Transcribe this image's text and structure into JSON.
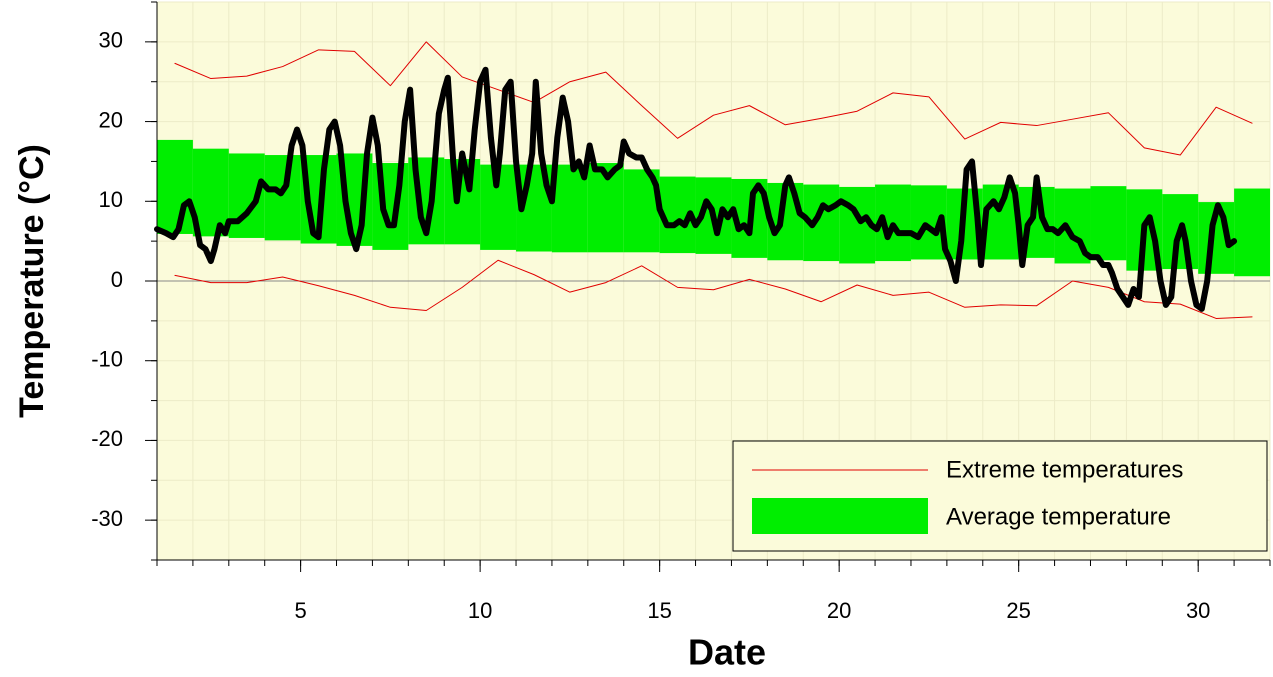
{
  "chart_data": {
    "type": "line",
    "x_label": "Date",
    "y_label": "Temperature (°C)",
    "xlim": [
      1,
      32
    ],
    "ylim": [
      -35,
      35
    ],
    "xticks": [
      5,
      10,
      15,
      20,
      25,
      30
    ],
    "yticks": [
      -30,
      -20,
      -10,
      0,
      10,
      20,
      30
    ],
    "grid": true,
    "legend": "lower right",
    "extremes": {
      "name": "Extreme temperatures",
      "color": "#e00000",
      "x": [
        1.5,
        2.5,
        3.5,
        4.5,
        5.5,
        6.5,
        7.5,
        8.5,
        9.5,
        10.5,
        11.5,
        12.5,
        13.5,
        14.5,
        15.5,
        16.5,
        17.5,
        18.5,
        19.5,
        20.5,
        21.5,
        22.5,
        23.5,
        24.5,
        25.5,
        26.5,
        27.5,
        28.5,
        29.5,
        30.5,
        31.5
      ],
      "max": [
        27.3,
        25.4,
        25.7,
        26.9,
        29,
        28.8,
        24.5,
        30,
        25.6,
        24,
        22.4,
        25,
        26.2,
        22,
        17.9,
        20.8,
        22,
        19.6,
        20.4,
        21.3,
        23.6,
        23.1,
        17.8,
        19.9,
        19.5,
        20.3,
        21.1,
        16.7,
        15.8,
        21.8,
        19.8
      ],
      "min": [
        0.7,
        -0.2,
        -0.2,
        0.5,
        -0.6,
        -1.8,
        -3.3,
        -3.7,
        -0.8,
        2.6,
        0.8,
        -1.4,
        -0.2,
        1.9,
        -0.8,
        -1.1,
        0.2,
        -1,
        -2.6,
        -0.5,
        -1.8,
        -1.4,
        -3.3,
        -3,
        -3.1,
        0,
        -0.8,
        -2.6,
        -2.9,
        -4.7,
        -4.5
      ]
    },
    "average": {
      "name": "Average temperature",
      "color": "#00ee00",
      "x": [
        1,
        2,
        3,
        4,
        5,
        6,
        7,
        8,
        9,
        10,
        11,
        12,
        13,
        14,
        15,
        16,
        17,
        18,
        19,
        20,
        21,
        22,
        23,
        24,
        25,
        26,
        27,
        28,
        29,
        30,
        31
      ],
      "low": [
        5.9,
        5.6,
        5.4,
        5.1,
        4.7,
        4.4,
        3.9,
        4.6,
        4.6,
        3.9,
        3.7,
        3.6,
        3.6,
        3.6,
        3.5,
        3.4,
        2.9,
        2.6,
        2.5,
        2.2,
        2.5,
        2.7,
        2.7,
        2.7,
        2.9,
        2.2,
        2.6,
        1.3,
        1.5,
        0.9,
        0.6
      ],
      "high": [
        17.7,
        16.6,
        16,
        15.8,
        15.8,
        16,
        14.8,
        15.5,
        15.3,
        14.6,
        14.6,
        14.6,
        14.8,
        14,
        13.1,
        13,
        12.8,
        12.3,
        12.1,
        11.8,
        12.1,
        12,
        11.6,
        12.1,
        11.8,
        11.6,
        11.9,
        11.5,
        10.9,
        9.9,
        11.6
      ]
    },
    "measured": {
      "color": "#000000",
      "x": [
        1,
        1.25,
        1.45,
        1.6,
        1.75,
        1.9,
        2.05,
        2.2,
        2.35,
        2.5,
        2.6,
        2.75,
        2.9,
        3,
        3.25,
        3.5,
        3.75,
        3.9,
        4.1,
        4.3,
        4.45,
        4.6,
        4.75,
        4.9,
        5.05,
        5.2,
        5.35,
        5.5,
        5.65,
        5.8,
        5.95,
        6.1,
        6.25,
        6.4,
        6.55,
        6.7,
        6.85,
        7,
        7.15,
        7.3,
        7.45,
        7.6,
        7.75,
        7.9,
        8.05,
        8.2,
        8.35,
        8.5,
        8.65,
        8.85,
        9,
        9.1,
        9.25,
        9.35,
        9.5,
        9.7,
        9.85,
        10,
        10.15,
        10.3,
        10.45,
        10.55,
        10.7,
        10.85,
        11,
        11.15,
        11.3,
        11.45,
        11.55,
        11.7,
        11.85,
        12,
        12.15,
        12.3,
        12.45,
        12.6,
        12.75,
        12.9,
        13.05,
        13.2,
        13.4,
        13.55,
        13.75,
        13.9,
        14,
        14.15,
        14.35,
        14.5,
        14.65,
        14.8,
        14.9,
        15,
        15.2,
        15.4,
        15.55,
        15.7,
        15.85,
        16,
        16.15,
        16.3,
        16.45,
        16.6,
        16.75,
        16.9,
        17.05,
        17.2,
        17.35,
        17.5,
        17.6,
        17.75,
        17.9,
        18.05,
        18.2,
        18.35,
        18.5,
        18.6,
        18.75,
        18.9,
        19.05,
        19.25,
        19.4,
        19.55,
        19.7,
        19.9,
        20.05,
        20.25,
        20.4,
        20.6,
        20.75,
        20.9,
        21.05,
        21.2,
        21.35,
        21.5,
        21.65,
        21.85,
        22,
        22.2,
        22.4,
        22.55,
        22.7,
        22.85,
        22.95,
        23.1,
        23.25,
        23.4,
        23.55,
        23.7,
        23.85,
        23.95,
        24.1,
        24.3,
        24.45,
        24.6,
        24.75,
        24.9,
        25,
        25.1,
        25.25,
        25.4,
        25.5,
        25.65,
        25.8,
        25.95,
        26.1,
        26.3,
        26.5,
        26.7,
        26.85,
        27,
        27.2,
        27.35,
        27.5,
        27.6,
        27.75,
        27.9,
        28.05,
        28.2,
        28.35,
        28.5,
        28.65,
        28.8,
        28.95,
        29.1,
        29.25,
        29.4,
        29.55,
        29.65,
        29.8,
        29.95,
        30.1,
        30.25,
        30.4,
        30.55,
        30.7,
        30.85,
        31
      ],
      "values": [
        6.5,
        6,
        5.5,
        6.5,
        9.5,
        10,
        8,
        4.5,
        4,
        2.5,
        4,
        7,
        6,
        7.5,
        7.5,
        8.5,
        10,
        12.5,
        11.5,
        11.5,
        11,
        12,
        17,
        19,
        17,
        10,
        6,
        5.5,
        14,
        19,
        20,
        17,
        10,
        6,
        4,
        7,
        16,
        20.5,
        17,
        9,
        7,
        7,
        12,
        20,
        24,
        14,
        8,
        6,
        10,
        21,
        24,
        25.5,
        15,
        10,
        16,
        11.5,
        19,
        25,
        26.5,
        18,
        12,
        16,
        24,
        25,
        15,
        9,
        12,
        16,
        25,
        16,
        12,
        10,
        18,
        23,
        20,
        14,
        15,
        13,
        17,
        14,
        14,
        13,
        14,
        14.5,
        17.5,
        16,
        15.5,
        15.5,
        14,
        13,
        12,
        9,
        7,
        7,
        7.5,
        7,
        8.5,
        7,
        8,
        10,
        9,
        6,
        9,
        8,
        9,
        6.5,
        7,
        6,
        11,
        12,
        11,
        8,
        6,
        7,
        12,
        13,
        11,
        8.5,
        8,
        7,
        8,
        9.5,
        9,
        9.5,
        10,
        9.5,
        9,
        7.5,
        8,
        7,
        6.5,
        8,
        5.5,
        7,
        6,
        6,
        6,
        5.5,
        7,
        6.5,
        6,
        8,
        4,
        2.5,
        0,
        5,
        14,
        15,
        8,
        2,
        9,
        10,
        9,
        10.5,
        13,
        11,
        7,
        2,
        7,
        8,
        13,
        8,
        6.5,
        6.5,
        6,
        7,
        5.5,
        5,
        3.5,
        3,
        3,
        2,
        2,
        1,
        -1,
        -2,
        -3,
        -1,
        -2,
        7,
        8,
        5,
        0,
        -3,
        -2,
        5,
        7,
        5,
        0,
        -3,
        -3.5,
        0,
        7,
        9.5,
        8,
        4.5,
        5
      ]
    }
  }
}
